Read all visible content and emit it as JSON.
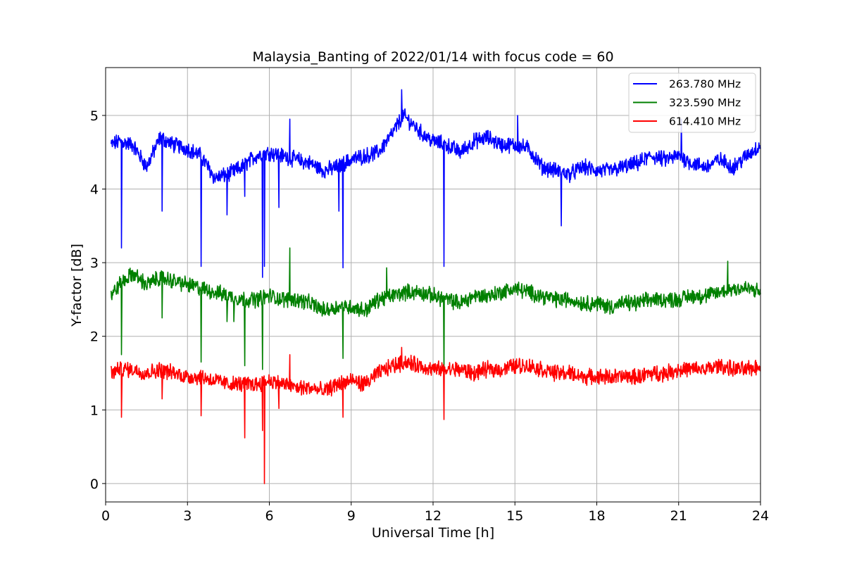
{
  "chart_data": {
    "type": "line",
    "title": "Malaysia_Banting of 2022/01/14 with focus code = 60",
    "xlabel": "Universal Time [h]",
    "ylabel": "Y-factor [dB]",
    "xlim": [
      0,
      24
    ],
    "ylim": [
      -0.25,
      5.65
    ],
    "xticks": [
      0,
      3,
      6,
      9,
      12,
      15,
      18,
      21,
      24
    ],
    "xtick_labels": [
      "0",
      "3",
      "6",
      "9",
      "12",
      "15",
      "18",
      "21",
      "24"
    ],
    "yticks": [
      0,
      1,
      2,
      3,
      4,
      5
    ],
    "ytick_labels": [
      "0",
      "1",
      "2",
      "3",
      "4",
      "5"
    ],
    "grid": true,
    "legend_position": "top-right",
    "series": [
      {
        "name": "263.780 MHz",
        "color": "#0000ff",
        "x": [
          0.2,
          0.5,
          1.0,
          1.5,
          2.0,
          2.5,
          3.0,
          3.5,
          4.0,
          4.5,
          5.0,
          5.5,
          6.0,
          6.5,
          7.0,
          7.5,
          8.0,
          8.5,
          9.0,
          9.5,
          10.0,
          10.5,
          10.9,
          11.2,
          11.6,
          12.0,
          12.5,
          13.0,
          13.5,
          14.0,
          14.5,
          15.0,
          15.5,
          16.0,
          16.5,
          17.0,
          17.5,
          18.0,
          18.5,
          19.0,
          19.5,
          20.0,
          20.5,
          21.0,
          21.5,
          22.0,
          22.5,
          23.0,
          23.5,
          24.0
        ],
        "y": [
          4.6,
          4.65,
          4.6,
          4.3,
          4.7,
          4.6,
          4.55,
          4.45,
          4.15,
          4.2,
          4.3,
          4.45,
          4.5,
          4.45,
          4.4,
          4.35,
          4.25,
          4.3,
          4.4,
          4.45,
          4.5,
          4.75,
          5.0,
          4.9,
          4.75,
          4.65,
          4.6,
          4.5,
          4.65,
          4.7,
          4.6,
          4.6,
          4.55,
          4.3,
          4.25,
          4.2,
          4.3,
          4.25,
          4.25,
          4.3,
          4.35,
          4.45,
          4.4,
          4.45,
          4.35,
          4.3,
          4.4,
          4.3,
          4.45,
          4.6
        ],
        "dips": [
          [
            0.58,
            3.2
          ],
          [
            2.07,
            3.7
          ],
          [
            3.5,
            2.95
          ],
          [
            4.45,
            3.65
          ],
          [
            5.1,
            3.9
          ],
          [
            5.75,
            2.8
          ],
          [
            5.82,
            2.95
          ],
          [
            6.35,
            3.75
          ],
          [
            8.55,
            3.7
          ],
          [
            8.7,
            2.93
          ],
          [
            12.4,
            2.95
          ],
          [
            16.7,
            3.5
          ]
        ],
        "spikes": [
          [
            6.75,
            4.95
          ],
          [
            10.85,
            5.35
          ],
          [
            15.1,
            5.0
          ],
          [
            21.1,
            4.95
          ]
        ]
      },
      {
        "name": "323.590 MHz",
        "color": "#008000",
        "x": [
          0.2,
          0.5,
          1.0,
          1.5,
          2.0,
          2.5,
          3.0,
          3.5,
          4.0,
          4.5,
          5.0,
          5.5,
          6.0,
          6.5,
          7.0,
          7.5,
          8.0,
          8.5,
          9.0,
          9.5,
          10.0,
          10.5,
          11.0,
          11.5,
          12.0,
          12.5,
          13.0,
          13.5,
          14.0,
          14.5,
          15.0,
          15.5,
          16.0,
          16.5,
          17.0,
          17.5,
          18.0,
          18.5,
          19.0,
          19.5,
          20.0,
          20.5,
          21.0,
          21.5,
          22.0,
          22.5,
          23.0,
          23.5,
          24.0
        ],
        "y": [
          2.55,
          2.7,
          2.85,
          2.7,
          2.8,
          2.75,
          2.7,
          2.65,
          2.6,
          2.55,
          2.5,
          2.5,
          2.55,
          2.5,
          2.5,
          2.45,
          2.35,
          2.4,
          2.4,
          2.35,
          2.5,
          2.55,
          2.6,
          2.6,
          2.55,
          2.5,
          2.45,
          2.55,
          2.55,
          2.6,
          2.65,
          2.6,
          2.55,
          2.5,
          2.5,
          2.45,
          2.45,
          2.4,
          2.45,
          2.45,
          2.5,
          2.5,
          2.5,
          2.55,
          2.55,
          2.6,
          2.65,
          2.65,
          2.6
        ],
        "dips": [
          [
            0.58,
            1.75
          ],
          [
            2.07,
            2.25
          ],
          [
            3.5,
            1.65
          ],
          [
            4.45,
            2.2
          ],
          [
            4.7,
            2.2
          ],
          [
            5.1,
            1.6
          ],
          [
            5.75,
            1.55
          ],
          [
            8.7,
            1.7
          ],
          [
            12.4,
            1.5
          ]
        ],
        "spikes": [
          [
            6.75,
            3.2
          ],
          [
            10.3,
            2.93
          ],
          [
            22.8,
            3.02
          ]
        ]
      },
      {
        "name": "614.410 MHz",
        "color": "#ff0000",
        "x": [
          0.2,
          0.5,
          1.0,
          1.5,
          2.0,
          2.5,
          3.0,
          3.5,
          4.0,
          4.5,
          5.0,
          5.5,
          6.0,
          6.5,
          7.0,
          7.5,
          8.0,
          8.5,
          9.0,
          9.5,
          10.0,
          10.5,
          11.0,
          11.5,
          12.0,
          12.5,
          13.0,
          13.5,
          14.0,
          14.5,
          15.0,
          15.5,
          16.0,
          16.5,
          17.0,
          17.5,
          18.0,
          18.5,
          19.0,
          19.5,
          20.0,
          20.5,
          21.0,
          21.5,
          22.0,
          22.5,
          23.0,
          23.5,
          24.0
        ],
        "y": [
          1.5,
          1.55,
          1.55,
          1.5,
          1.55,
          1.5,
          1.45,
          1.45,
          1.4,
          1.35,
          1.35,
          1.35,
          1.4,
          1.35,
          1.3,
          1.3,
          1.25,
          1.35,
          1.4,
          1.35,
          1.5,
          1.6,
          1.65,
          1.6,
          1.55,
          1.55,
          1.55,
          1.5,
          1.55,
          1.55,
          1.6,
          1.6,
          1.55,
          1.5,
          1.5,
          1.45,
          1.45,
          1.45,
          1.45,
          1.45,
          1.5,
          1.5,
          1.55,
          1.55,
          1.55,
          1.6,
          1.55,
          1.55,
          1.6
        ],
        "dips": [
          [
            0.58,
            0.9
          ],
          [
            2.07,
            1.15
          ],
          [
            3.5,
            0.92
          ],
          [
            5.1,
            0.62
          ],
          [
            5.75,
            0.72
          ],
          [
            5.82,
            0.0
          ],
          [
            6.35,
            1.02
          ],
          [
            8.7,
            0.9
          ],
          [
            12.4,
            0.87
          ]
        ],
        "spikes": [
          [
            6.75,
            1.75
          ],
          [
            10.85,
            1.85
          ]
        ]
      }
    ]
  }
}
